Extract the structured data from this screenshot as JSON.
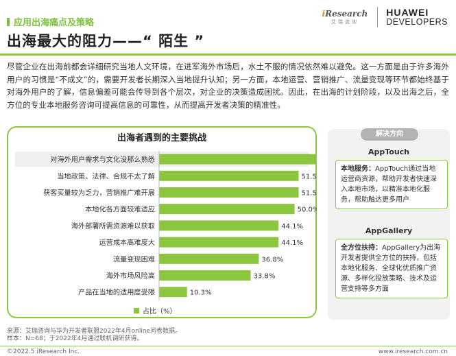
{
  "header": {
    "section_label": "应用出海痛点及策略",
    "title": "出海最大的阻力——“ 陌生 ”",
    "iresearch_logo": {
      "main_i": "i",
      "main_rest": "Research",
      "sub": "艾瑞咨询"
    },
    "huawei_logo": {
      "line1": "HUAWEI",
      "line2": "DEVELOPERS"
    }
  },
  "intro": "尽管企业在出海前都会详细研究当地人文环境，在进军海外市场后，水土不服的情况依然难以避免。这一方面是由于许多海外用户的习惯是“不成文”的，需要开发者长期深入当地提升认知；另一方面，本地运营、营销推广、流量变现等环节都始终基于对海外用户的了解，信息偏差可能会传导到各个层次，对企业的决策造成困扰。因此，在出海的计划阶段，以及出海之后，全方位的专业本地服务咨询可提高信息的可靠性，从而提高开发者决策的精准性。",
  "chart_data": {
    "type": "bar",
    "orientation": "horizontal",
    "title": "出海者遇到的主要挑战",
    "categories": [
      "对海外用户需求与文化没那么熟悉",
      "当地政策、法律、合规不太了解",
      "获客买量较为乏力，营销推广难开展",
      "本地化各方面较难适应",
      "海外部署所需资源难以获取",
      "运营成本高难度大",
      "流量变现困难",
      "海外市场风险高",
      "产品在当地的适用度受限"
    ],
    "values": [
      66.2,
      51.5,
      51.5,
      50.0,
      44.1,
      44.1,
      36.8,
      33.8,
      10.3
    ],
    "value_labels": [
      "66.2%",
      "51.5%",
      "51.5%",
      "50.0%",
      "44.1%",
      "44.1%",
      "36.8%",
      "33.8%",
      "10.3%"
    ],
    "xlim": [
      0,
      100
    ],
    "legend": "占比（%）",
    "legend_position": "bottom-center",
    "highlight_index": 0,
    "bar_color": "#8cc63f"
  },
  "side": {
    "tag": "解决方向",
    "cards": [
      {
        "title": "AppTouch",
        "bold": "本地服务：",
        "text": "AppTouch通过当地运营商资源，帮助开发者快速深入本地市场，以精准本地化服务，帮助触达更多用户"
      },
      {
        "title": "AppGallery",
        "bold": "全方位扶持：",
        "text": "AppGallery为出海开发者提供全方位的扶持，包括本地化服务、全球化优质推广资源、多样化投放策略、技术及运营支持等多方面"
      }
    ]
  },
  "footer": {
    "source_line1": "来源：艾瑞咨询与华为开发者联盟2022年4月online问卷数据。",
    "source_line2": "样本：N=68；于2022年4月通过联机调研获得。",
    "copyright": "©2022.5 iResearch Inc.",
    "website": "www.iresearch.com.cn"
  }
}
